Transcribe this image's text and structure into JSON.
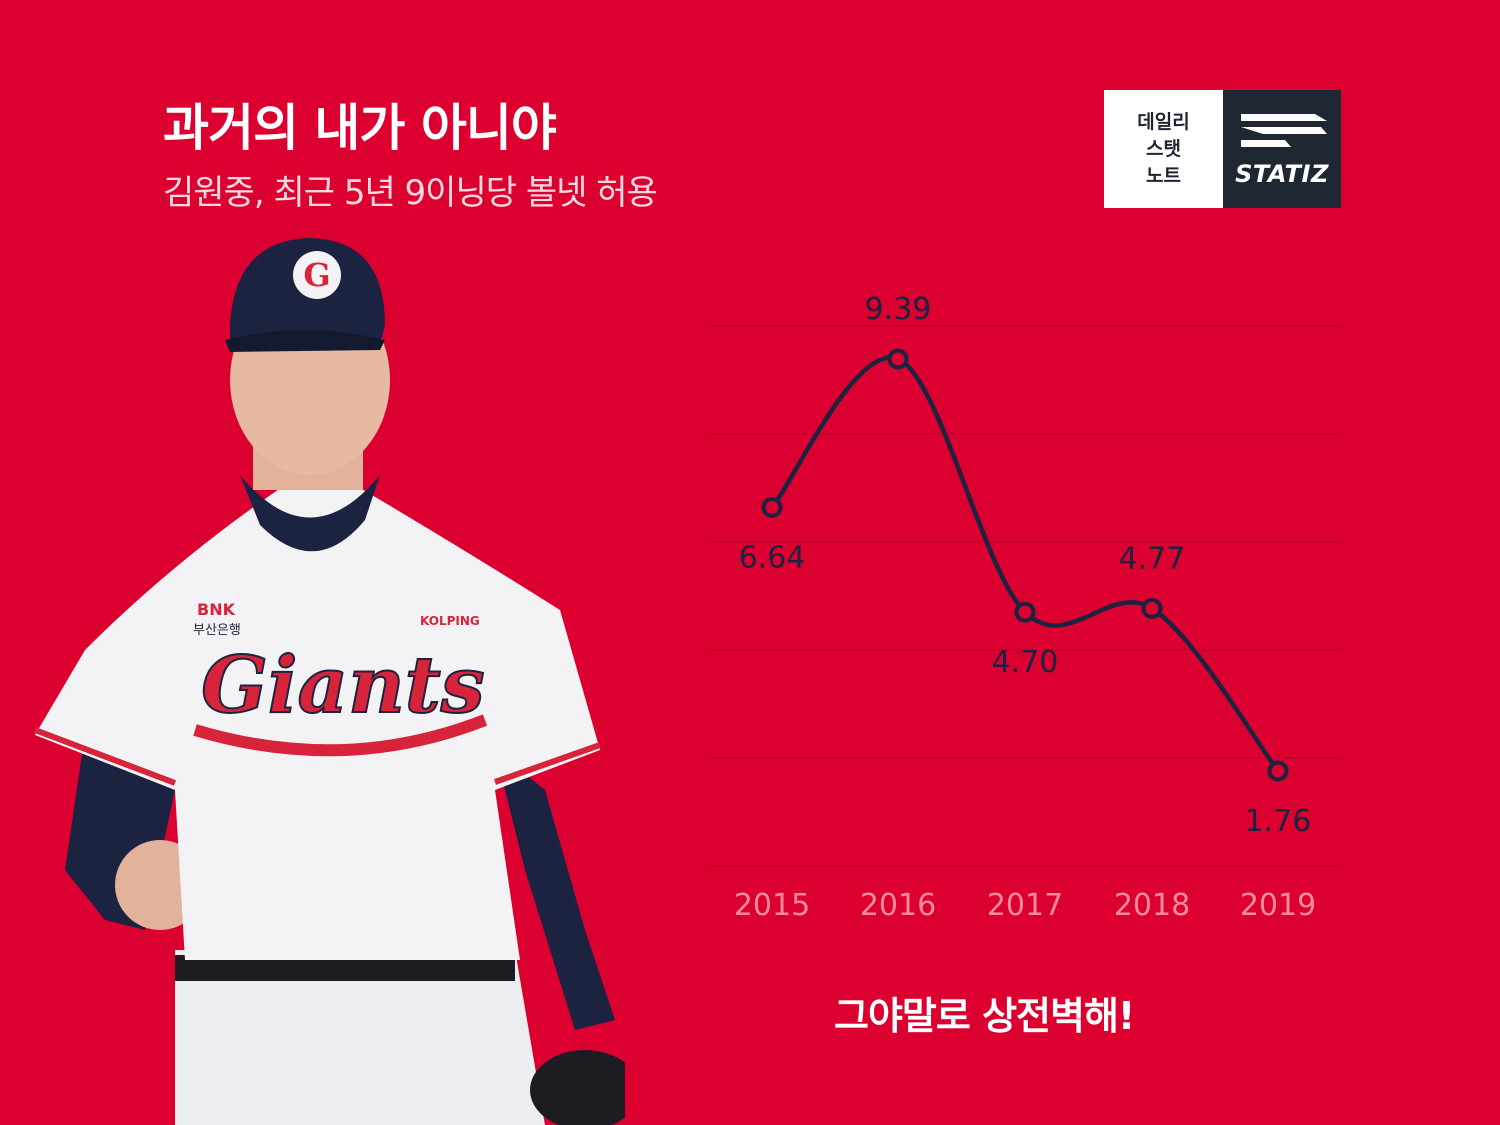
{
  "header": {
    "title": "과거의 내가 아니야",
    "subtitle": "김원중, 최근 5년 9이닝당 볼넷 허용"
  },
  "logo": {
    "left_lines": [
      "데일리",
      "스탯",
      "노트"
    ],
    "brand": "STATIZ"
  },
  "footer": {
    "tagline": "그야말로 상전벽해!"
  },
  "photo": {
    "cap_letter": "G",
    "jersey_text": "Giants",
    "sponsor_1": "BNK",
    "sponsor_1_sub": "부산은행",
    "sponsor_2": "KOLPING"
  },
  "colors": {
    "background": "#dc0030",
    "line": "#1b2340",
    "tick_text": "#ff8a9b",
    "grid": "#b8002a"
  },
  "chart_data": {
    "type": "line",
    "title": "",
    "x": [
      "2015",
      "2016",
      "2017",
      "2018",
      "2019"
    ],
    "series": [
      {
        "values": [
          6.64,
          9.39,
          4.7,
          4.77,
          1.76
        ]
      }
    ],
    "data_labels": [
      "6.64",
      "9.39",
      "4.70",
      "4.77",
      "1.76"
    ],
    "xlabel": "",
    "ylabel": "",
    "ylim": [
      0,
      10
    ],
    "grid": true,
    "smooth": true
  }
}
